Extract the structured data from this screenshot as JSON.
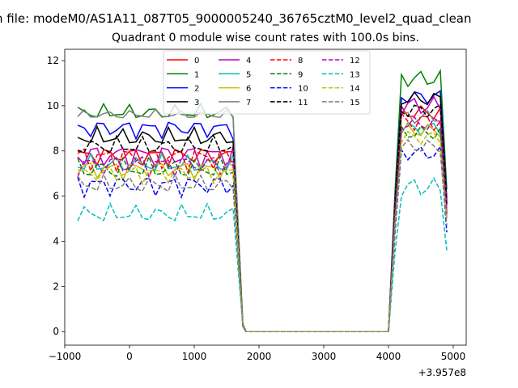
{
  "chart_data": {
    "type": "line",
    "suptitle": "n file: modeM0/AS1A11_087T05_9000005240_36765cztM0_level2_quad_clean",
    "title": "Quadrant 0 module wise count rates with 100.0s bins.",
    "xlabel": "",
    "ylabel": "",
    "x_offset_label": "+3.957e8",
    "xlim": [
      -1000,
      5200
    ],
    "ylim": [
      -0.6,
      12.5
    ],
    "xticks": [
      -1000,
      0,
      1000,
      2000,
      3000,
      4000,
      5000
    ],
    "xtick_labels": [
      "−1000",
      "0",
      "1000",
      "2000",
      "3000",
      "4000",
      "5000"
    ],
    "yticks": [
      0,
      2,
      4,
      6,
      8,
      10,
      12
    ],
    "ytick_labels": [
      "0",
      "2",
      "4",
      "6",
      "8",
      "10",
      "12"
    ],
    "legend_position": "upper-center",
    "legend_columns": 4,
    "x_segments": {
      "first": {
        "start": -800,
        "step": 100,
        "count": 25
      },
      "gap_x": [
        1800,
        1900,
        2000,
        2100,
        2200,
        2300,
        2400,
        2500,
        2600,
        2700,
        2800,
        2900,
        3000,
        3100,
        3200,
        3300,
        3400,
        3500,
        3600,
        3700,
        3800,
        3900,
        4000
      ],
      "second": {
        "start": 4100,
        "step": 100,
        "count": 9
      }
    },
    "series": [
      {
        "name": "0",
        "color": "#ff0000",
        "dash": false,
        "base1": 7.8,
        "amp1": 0.3,
        "base2": 9.7,
        "amp2": 0.3,
        "end2": 5.6
      },
      {
        "name": "1",
        "color": "#008000",
        "dash": false,
        "base1": 9.7,
        "amp1": 0.25,
        "base2": 11.2,
        "amp2": 0.35,
        "end2": 6.3
      },
      {
        "name": "2",
        "color": "#0000ff",
        "dash": false,
        "base1": 9.0,
        "amp1": 0.3,
        "base2": 10.4,
        "amp2": 0.3,
        "end2": 5.9
      },
      {
        "name": "3",
        "color": "#000000",
        "dash": false,
        "base1": 8.6,
        "amp1": 0.3,
        "base2": 10.3,
        "amp2": 0.3,
        "end2": 5.8
      },
      {
        "name": "4",
        "color": "#bf00bf",
        "dash": false,
        "base1": 7.8,
        "amp1": 0.4,
        "base2": 10.0,
        "amp2": 0.4,
        "end2": 5.7
      },
      {
        "name": "5",
        "color": "#00bfbf",
        "dash": false,
        "base1": 7.4,
        "amp1": 0.3,
        "base2": 9.0,
        "amp2": 0.3,
        "end2": 5.2
      },
      {
        "name": "6",
        "color": "#bfbf00",
        "dash": false,
        "base1": 7.2,
        "amp1": 0.3,
        "base2": 8.9,
        "amp2": 0.3,
        "end2": 5.0
      },
      {
        "name": "7",
        "color": "#7f7f7f",
        "dash": false,
        "base1": 9.6,
        "amp1": 0.15,
        "base2": 9.5,
        "amp2": 0.3,
        "end2": 5.4
      },
      {
        "name": "8",
        "color": "#ff0000",
        "dash": true,
        "base1": 7.7,
        "amp1": 0.4,
        "base2": 9.3,
        "amp2": 0.4,
        "end2": 5.3
      },
      {
        "name": "9",
        "color": "#008000",
        "dash": true,
        "base1": 7.2,
        "amp1": 0.35,
        "base2": 8.8,
        "amp2": 0.3,
        "end2": 5.0
      },
      {
        "name": "10",
        "color": "#0000ff",
        "dash": true,
        "base1": 6.5,
        "amp1": 0.35,
        "base2": 7.9,
        "amp2": 0.3,
        "end2": 4.4
      },
      {
        "name": "11",
        "color": "#000000",
        "dash": true,
        "base1": 8.2,
        "amp1": 0.3,
        "base2": 9.8,
        "amp2": 0.3,
        "end2": 5.6
      },
      {
        "name": "12",
        "color": "#bf00bf",
        "dash": true,
        "base1": 7.4,
        "amp1": 0.35,
        "base2": 9.2,
        "amp2": 0.3,
        "end2": 5.2
      },
      {
        "name": "13",
        "color": "#00bfbf",
        "dash": true,
        "base1": 5.2,
        "amp1": 0.3,
        "base2": 6.4,
        "amp2": 0.4,
        "end2": 3.6
      },
      {
        "name": "14",
        "color": "#bfbf00",
        "dash": true,
        "base1": 7.0,
        "amp1": 0.3,
        "base2": 8.6,
        "amp2": 0.3,
        "end2": 4.9
      },
      {
        "name": "15",
        "color": "#7f7f7f",
        "dash": true,
        "base1": 6.5,
        "amp1": 0.3,
        "base2": 8.2,
        "amp2": 0.3,
        "end2": 4.7
      }
    ]
  }
}
